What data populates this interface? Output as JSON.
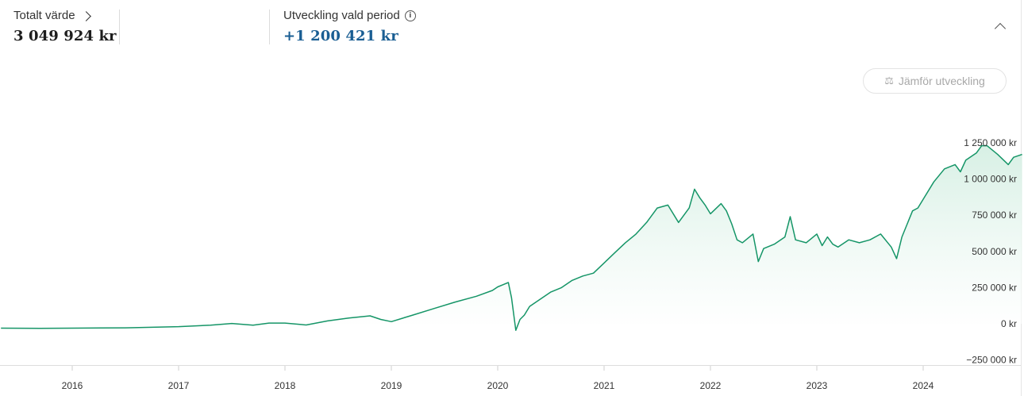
{
  "summary": {
    "total_label": "Totalt värde",
    "total_value": "3 049 924 kr",
    "dev_label": "Utveckling vald period",
    "dev_value": "+1 200 421 kr"
  },
  "compare_button": {
    "label": "Jämför utveckling",
    "icon": "scale-icon"
  },
  "colors": {
    "line": "#159567",
    "fill": "#e6f5ee",
    "positive": "#1a5e93",
    "axis": "#dddddd"
  },
  "chart_data": {
    "type": "area",
    "title": "",
    "xlabel": "",
    "ylabel": "",
    "x_ticks": [
      "2016",
      "2017",
      "2018",
      "2019",
      "2020",
      "2021",
      "2022",
      "2023",
      "2024"
    ],
    "y_ticks": [
      -250000,
      0,
      250000,
      500000,
      750000,
      1000000,
      1250000
    ],
    "y_tick_labels": [
      "−250 000 kr",
      "0 kr",
      "250 000 kr",
      "500 000 kr",
      "750 000 kr",
      "1 000 000 kr",
      "1 250 000 kr"
    ],
    "ylim": [
      -250000,
      1250000
    ],
    "xlim": [
      2015.33,
      2024.93
    ],
    "grid": false,
    "legend": "none",
    "series": [
      {
        "x": [
          2015.33,
          2015.7,
          2016.0,
          2016.5,
          2017.0,
          2017.3,
          2017.5,
          2017.7,
          2017.85,
          2018.0,
          2018.2,
          2018.4,
          2018.6,
          2018.8,
          2018.9,
          2019.0,
          2019.2,
          2019.4,
          2019.6,
          2019.8,
          2019.95,
          2020.0,
          2020.1,
          2020.13,
          2020.17,
          2020.21,
          2020.25,
          2020.3,
          2020.4,
          2020.5,
          2020.6,
          2020.7,
          2020.8,
          2020.9,
          2021.0,
          2021.1,
          2021.2,
          2021.3,
          2021.4,
          2021.5,
          2021.6,
          2021.7,
          2021.8,
          2021.85,
          2021.9,
          2021.95,
          2022.0,
          2022.1,
          2022.15,
          2022.2,
          2022.25,
          2022.3,
          2022.4,
          2022.45,
          2022.5,
          2022.6,
          2022.7,
          2022.75,
          2022.8,
          2022.9,
          2023.0,
          2023.05,
          2023.1,
          2023.15,
          2023.2,
          2023.3,
          2023.4,
          2023.5,
          2023.6,
          2023.7,
          2023.75,
          2023.8,
          2023.9,
          2023.95,
          2024.0,
          2024.1,
          2024.2,
          2024.3,
          2024.35,
          2024.4,
          2024.5,
          2024.55,
          2024.6,
          2024.7,
          2024.8,
          2024.85,
          2024.93
        ],
        "values": [
          -30000,
          -32000,
          -30000,
          -28000,
          -20000,
          -10000,
          2000,
          -10000,
          5000,
          5000,
          -8000,
          20000,
          40000,
          55000,
          30000,
          15000,
          60000,
          105000,
          150000,
          190000,
          230000,
          255000,
          285000,
          180000,
          -45000,
          30000,
          60000,
          120000,
          170000,
          220000,
          250000,
          300000,
          330000,
          350000,
          420000,
          490000,
          560000,
          620000,
          700000,
          800000,
          820000,
          700000,
          800000,
          930000,
          870000,
          820000,
          760000,
          830000,
          780000,
          690000,
          580000,
          560000,
          620000,
          430000,
          520000,
          550000,
          600000,
          740000,
          580000,
          560000,
          620000,
          540000,
          600000,
          550000,
          530000,
          580000,
          560000,
          580000,
          620000,
          530000,
          450000,
          600000,
          780000,
          800000,
          860000,
          980000,
          1070000,
          1100000,
          1050000,
          1130000,
          1180000,
          1230000,
          1230000,
          1170000,
          1100000,
          1150000,
          1170000
        ]
      }
    ]
  }
}
